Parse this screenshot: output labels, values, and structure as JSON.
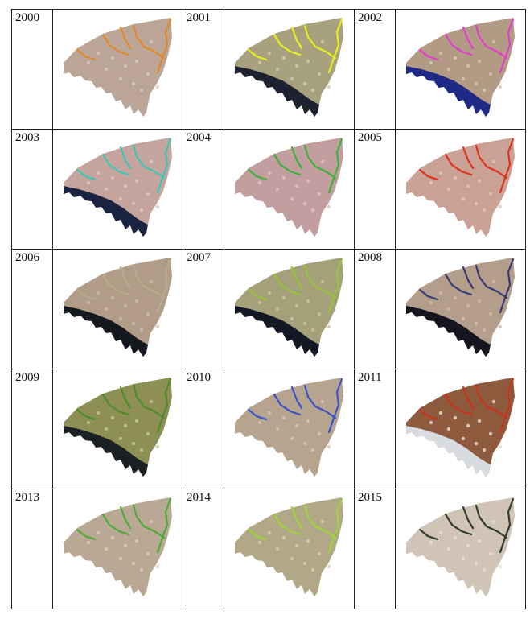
{
  "panels": [
    {
      "year": "2000",
      "base": "#bba596",
      "overlay": "#e08a2a",
      "coast": "#2b2a3f",
      "speckle": "#d7cbbd",
      "coast_on": false
    },
    {
      "year": "2001",
      "base": "#a7a27d",
      "overlay": "#e8ee1a",
      "coast": "#1d2230",
      "speckle": "#cfcbb0",
      "coast_on": true
    },
    {
      "year": "2002",
      "base": "#b29a85",
      "overlay": "#e13fcc",
      "coast": "#1f2a86",
      "speckle": "#d6c6b0",
      "coast_on": true
    },
    {
      "year": "2003",
      "base": "#c4a49c",
      "overlay": "#3fc6b7",
      "coast": "#1a2340",
      "speckle": "#dcc7bf",
      "coast_on": true
    },
    {
      "year": "2004",
      "base": "#c29e9e",
      "overlay": "#3fb13f",
      "coast": "#202020",
      "speckle": "#dcc3c1",
      "coast_on": false
    },
    {
      "year": "2005",
      "base": "#c9a195",
      "overlay": "#e0321f",
      "coast": "#1c1c1c",
      "speckle": "#ddc8bd",
      "coast_on": false
    },
    {
      "year": "2006",
      "base": "#b09c87",
      "overlay": "#b6ab8d",
      "coast": "#161820",
      "speckle": "#ccbda8",
      "coast_on": true
    },
    {
      "year": "2007",
      "base": "#a3a07a",
      "overlay": "#97c23a",
      "coast": "#141824",
      "speckle": "#c8c49f",
      "coast_on": true
    },
    {
      "year": "2008",
      "base": "#b39d8b",
      "overlay": "#3a3a72",
      "coast": "#15151f",
      "speckle": "#cdbda9",
      "coast_on": true
    },
    {
      "year": "2009",
      "base": "#8d8f55",
      "overlay": "#4f8c2c",
      "coast": "#1a2024",
      "speckle": "#c4c7a0",
      "coast_on": true
    },
    {
      "year": "2010",
      "base": "#b7a48f",
      "overlay": "#3b52c8",
      "coast": "#2a2a3a",
      "speckle": "#d3c4b1",
      "coast_on": false
    },
    {
      "year": "2011",
      "base": "#8e5a3d",
      "overlay": "#c8351c",
      "coast": "#d8dbe0",
      "speckle": "#eadfd7",
      "coast_on": true
    },
    {
      "year": "2013",
      "base": "#b9a894",
      "overlay": "#4faa3a",
      "coast": "#ffffff",
      "speckle": "#d8ccbd",
      "coast_on": false
    },
    {
      "year": "2014",
      "base": "#b0a886",
      "overlay": "#9fd13a",
      "coast": "#ffffff",
      "speckle": "#d3ceb3",
      "coast_on": false
    },
    {
      "year": "2015",
      "base": "#cfc4b6",
      "overlay": "#2f3c2a",
      "coast": "#ffffff",
      "speckle": "#e6e0d7",
      "coast_on": false
    }
  ]
}
